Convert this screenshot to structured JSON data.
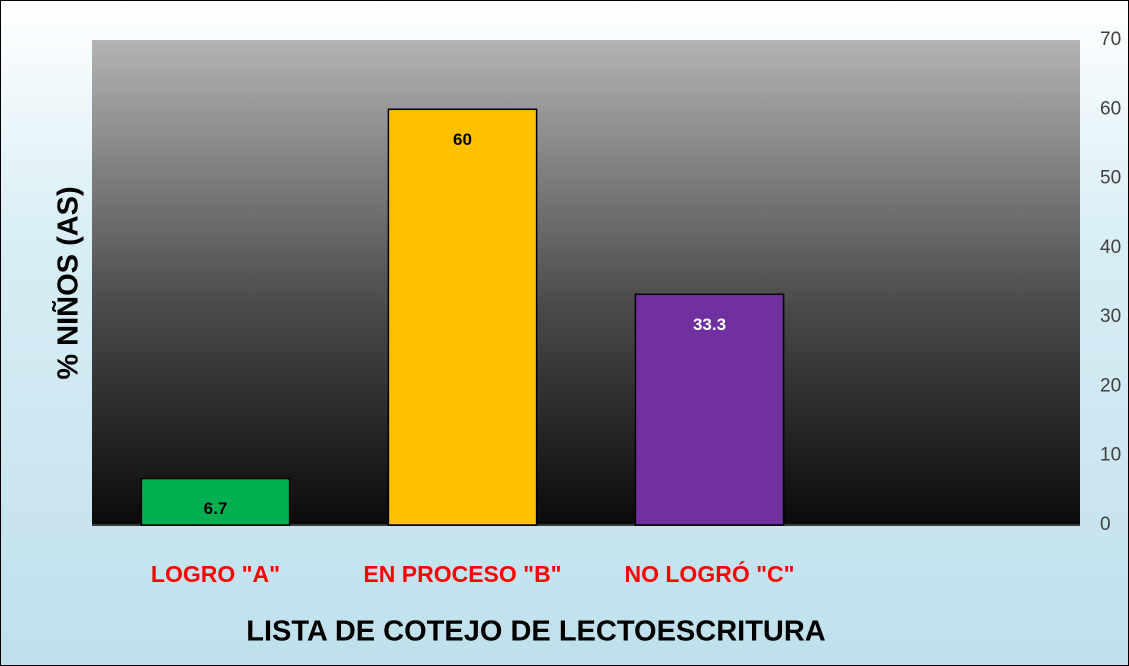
{
  "chart_data": {
    "type": "bar",
    "x_label": "LISTA DE COTEJO DE LECTOESCRITURA",
    "y_label": "% NIÑOS (AS)",
    "categories": [
      "LOGRO \"A\"",
      "EN PROCESO \"B\"",
      "NO LOGRÓ \"C\"",
      null
    ],
    "values": [
      6.7,
      60,
      33.3,
      null
    ],
    "colors": [
      "#00b050",
      "#ffc000",
      "#7030a0",
      null
    ],
    "label_colors": [
      "#000000",
      "#000000",
      "#ffffff",
      null
    ],
    "category_label_color": "#ff0000",
    "ylim": [
      0,
      70
    ],
    "yticks": [
      0,
      10,
      20,
      30,
      40,
      50,
      60,
      70
    ],
    "y_axis_side": "right",
    "grid": false
  }
}
